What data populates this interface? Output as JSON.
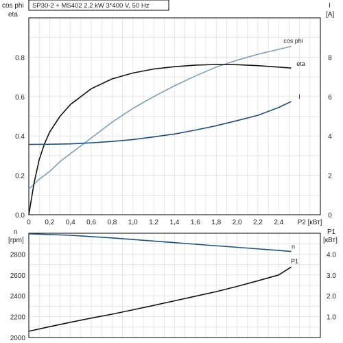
{
  "chart_data": [
    {
      "type": "line",
      "title": "SP30-2 + MS402   2.2 kW   3*400 V, 50 Hz",
      "xlabel": "P2 [кВт]",
      "xlim": [
        0,
        2.8
      ],
      "x_ticks": [
        "0",
        "0,2",
        "0,4",
        "0,6",
        "0,8",
        "1,0",
        "1,2",
        "1,4",
        "1,6",
        "1,8",
        "2,0",
        "2,2",
        "2,4"
      ],
      "x_tick_values": [
        0,
        0.2,
        0.4,
        0.6,
        0.8,
        1.0,
        1.2,
        1.4,
        1.6,
        1.8,
        2.0,
        2.2,
        2.4
      ],
      "left_axis": {
        "label_line1": "cos phi",
        "label_line2": "eta",
        "ylim": [
          0,
          1.0
        ],
        "ticks": [
          "0.0",
          "0.2",
          "0.4",
          "0.6",
          "0.8"
        ],
        "tick_values": [
          0,
          0.2,
          0.4,
          0.6,
          0.8
        ]
      },
      "right_axis": {
        "label_line1": "I",
        "label_line2": "[A]",
        "ylim": [
          0,
          10
        ],
        "ticks": [
          "0",
          "2",
          "4",
          "6",
          "8"
        ],
        "tick_values": [
          0,
          2,
          4,
          6,
          8
        ]
      },
      "grid": true,
      "series": [
        {
          "name": "cos phi",
          "axis": "left",
          "color": "#7f9db9",
          "x": [
            0,
            0.1,
            0.2,
            0.3,
            0.4,
            0.5,
            0.6,
            0.8,
            1.0,
            1.2,
            1.4,
            1.6,
            1.8,
            2.0,
            2.2,
            2.4,
            2.52
          ],
          "y": [
            0.13,
            0.18,
            0.22,
            0.27,
            0.31,
            0.35,
            0.39,
            0.47,
            0.54,
            0.6,
            0.655,
            0.705,
            0.75,
            0.785,
            0.815,
            0.84,
            0.855
          ]
        },
        {
          "name": "eta",
          "axis": "left",
          "color": "#111111",
          "x": [
            0,
            0.05,
            0.1,
            0.15,
            0.2,
            0.3,
            0.4,
            0.6,
            0.8,
            1.0,
            1.2,
            1.4,
            1.6,
            1.8,
            2.0,
            2.2,
            2.4,
            2.52
          ],
          "y": [
            0.0,
            0.16,
            0.28,
            0.36,
            0.42,
            0.5,
            0.56,
            0.64,
            0.69,
            0.72,
            0.74,
            0.752,
            0.76,
            0.763,
            0.762,
            0.757,
            0.75,
            0.745
          ]
        },
        {
          "name": "I",
          "axis": "right",
          "color": "#1f4e79",
          "x": [
            0,
            0.2,
            0.4,
            0.6,
            0.8,
            1.0,
            1.2,
            1.4,
            1.6,
            1.8,
            2.0,
            2.2,
            2.4,
            2.52
          ],
          "y": [
            3.57,
            3.58,
            3.6,
            3.65,
            3.72,
            3.82,
            3.95,
            4.1,
            4.3,
            4.52,
            4.78,
            5.05,
            5.45,
            5.75
          ]
        }
      ]
    },
    {
      "type": "line",
      "xlim": [
        0,
        2.8
      ],
      "left_axis": {
        "label_line1": "n",
        "label_line2": "[rpm]",
        "ylim": [
          2000,
          3000
        ],
        "ticks": [
          "2000",
          "2200",
          "2400",
          "2600",
          "2800"
        ],
        "tick_values": [
          2000,
          2200,
          2400,
          2600,
          2800
        ]
      },
      "right_axis": {
        "label_line1": "P1",
        "label_line2": "[кВт]",
        "ylim": [
          0,
          5
        ],
        "ticks": [
          "1.0",
          "2.0",
          "3.0",
          "4.0"
        ],
        "tick_values": [
          1.0,
          2.0,
          3.0,
          4.0
        ]
      },
      "grid": true,
      "series": [
        {
          "name": "n",
          "axis": "left",
          "color": "#1f4e79",
          "x": [
            0,
            0.4,
            0.8,
            1.2,
            1.6,
            2.0,
            2.4,
            2.52
          ],
          "y": [
            2995,
            2980,
            2955,
            2925,
            2895,
            2865,
            2835,
            2825
          ]
        },
        {
          "name": "P1",
          "axis": "right",
          "color": "#111111",
          "x": [
            0,
            0.2,
            0.4,
            0.6,
            0.8,
            1.0,
            1.2,
            1.4,
            1.6,
            1.8,
            2.0,
            2.2,
            2.4,
            2.52
          ],
          "y": [
            0.3,
            0.52,
            0.73,
            0.93,
            1.12,
            1.33,
            1.54,
            1.76,
            1.98,
            2.2,
            2.45,
            2.72,
            3.0,
            3.38
          ]
        }
      ]
    }
  ]
}
